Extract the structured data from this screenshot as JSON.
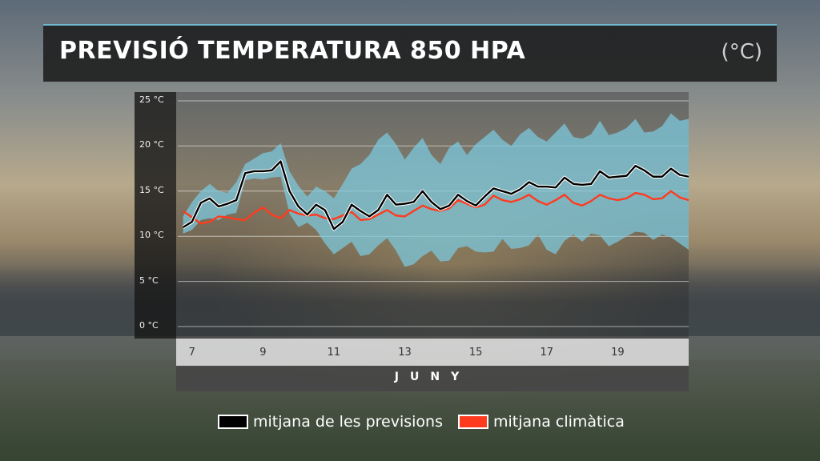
{
  "title": "PREVISIÓ TEMPERATURA 850 HPA",
  "unit": "(°C)",
  "colors": {
    "forecast": "#000000",
    "climate": "#ff3b1f",
    "band": "#7ccbe0"
  },
  "legend": {
    "forecast": "mitjana de les previsions",
    "climate": "mitjana climàtica"
  },
  "chart_data": {
    "type": "line",
    "xlabel": "JUNY",
    "x_tick_labels": [
      "7",
      "9",
      "11",
      "13",
      "15",
      "17",
      "19"
    ],
    "x_ticks": [
      7,
      9,
      11,
      13,
      15,
      17,
      19
    ],
    "xlim": [
      6.6,
      21.0
    ],
    "y_tick_labels": [
      "0 °C",
      "5 °C",
      "10 °C",
      "15 °C",
      "20 °C",
      "25 °C"
    ],
    "y_ticks": [
      0,
      5,
      10,
      15,
      20,
      25
    ],
    "ylim": [
      0,
      25
    ],
    "grid": true,
    "legend_position": "bottom-center",
    "x": [
      6.75,
      7.0,
      7.25,
      7.5,
      7.75,
      8.0,
      8.25,
      8.5,
      8.75,
      9.0,
      9.25,
      9.5,
      9.75,
      10.0,
      10.25,
      10.5,
      10.75,
      11.0,
      11.25,
      11.5,
      11.75,
      12.0,
      12.25,
      12.5,
      12.75,
      13.0,
      13.25,
      13.5,
      13.75,
      14.0,
      14.25,
      14.5,
      14.75,
      15.0,
      15.25,
      15.5,
      15.75,
      16.0,
      16.25,
      16.5,
      16.75,
      17.0,
      17.25,
      17.5,
      17.75,
      18.0,
      18.25,
      18.5,
      18.75,
      19.0,
      19.25,
      19.5,
      19.75,
      20.0,
      20.25,
      20.5,
      20.75,
      21.0
    ],
    "series": [
      {
        "name": "mitjana de les previsions",
        "values": [
          11.0,
          11.6,
          13.7,
          14.2,
          13.3,
          13.6,
          14.0,
          17.0,
          17.2,
          17.2,
          17.3,
          18.3,
          15.0,
          13.3,
          12.4,
          13.5,
          12.9,
          10.8,
          11.6,
          13.5,
          12.8,
          12.2,
          12.9,
          14.6,
          13.5,
          13.6,
          13.8,
          15.0,
          13.8,
          13.0,
          13.4,
          14.6,
          13.9,
          13.4,
          14.4,
          15.3,
          15.0,
          14.7,
          15.2,
          16.0,
          15.5,
          15.5,
          15.4,
          16.5,
          15.8,
          15.7,
          15.8,
          17.2,
          16.5,
          16.6,
          16.7,
          17.8,
          17.3,
          16.6,
          16.6,
          17.5,
          16.8,
          16.6
        ]
      },
      {
        "name": "mitjana climàtica",
        "values": [
          12.8,
          12.1,
          11.4,
          11.6,
          12.2,
          12.1,
          11.9,
          11.8,
          12.6,
          13.2,
          12.4,
          12.0,
          12.9,
          12.5,
          12.3,
          12.4,
          12.0,
          11.9,
          12.3,
          12.7,
          11.8,
          11.9,
          12.4,
          12.9,
          12.3,
          12.2,
          12.8,
          13.4,
          13.0,
          12.8,
          13.1,
          14.0,
          13.6,
          13.2,
          13.5,
          14.5,
          14.0,
          13.8,
          14.1,
          14.6,
          13.9,
          13.5,
          14.0,
          14.6,
          13.7,
          13.4,
          13.9,
          14.6,
          14.2,
          14.0,
          14.2,
          14.8,
          14.6,
          14.1,
          14.2,
          15.0,
          14.3,
          14.0
        ]
      }
    ],
    "band": {
      "upper": [
        12.2,
        13.8,
        15.0,
        15.8,
        15.0,
        14.8,
        16.0,
        18.0,
        18.6,
        19.2,
        19.4,
        20.3,
        17.2,
        15.6,
        14.4,
        15.5,
        15.0,
        14.2,
        15.8,
        17.5,
        18.0,
        19.0,
        20.7,
        21.5,
        20.2,
        18.5,
        19.8,
        20.9,
        19.0,
        18.0,
        19.8,
        20.5,
        19.0,
        20.2,
        21.0,
        21.8,
        20.7,
        20.0,
        21.3,
        22.0,
        21.0,
        20.5,
        21.5,
        22.5,
        21.0,
        20.8,
        21.3,
        22.8,
        21.2,
        21.5,
        22.0,
        23.0,
        21.5,
        21.6,
        22.2,
        23.6,
        22.8,
        23.0
      ],
      "lower": [
        10.3,
        10.7,
        11.8,
        12.0,
        11.8,
        12.4,
        12.6,
        16.2,
        16.4,
        16.3,
        16.5,
        16.6,
        12.5,
        11.0,
        11.5,
        10.7,
        9.2,
        8.0,
        8.7,
        9.4,
        7.8,
        8.0,
        9.0,
        9.8,
        8.4,
        6.6,
        6.9,
        7.8,
        8.4,
        7.2,
        7.3,
        8.7,
        8.9,
        8.3,
        8.2,
        8.3,
        9.7,
        8.6,
        8.7,
        9.0,
        10.2,
        8.5,
        8.0,
        9.5,
        10.2,
        9.4,
        10.3,
        10.1,
        8.9,
        9.4,
        10.0,
        10.5,
        10.4,
        9.6,
        10.2,
        9.9,
        9.2,
        8.5
      ]
    }
  }
}
